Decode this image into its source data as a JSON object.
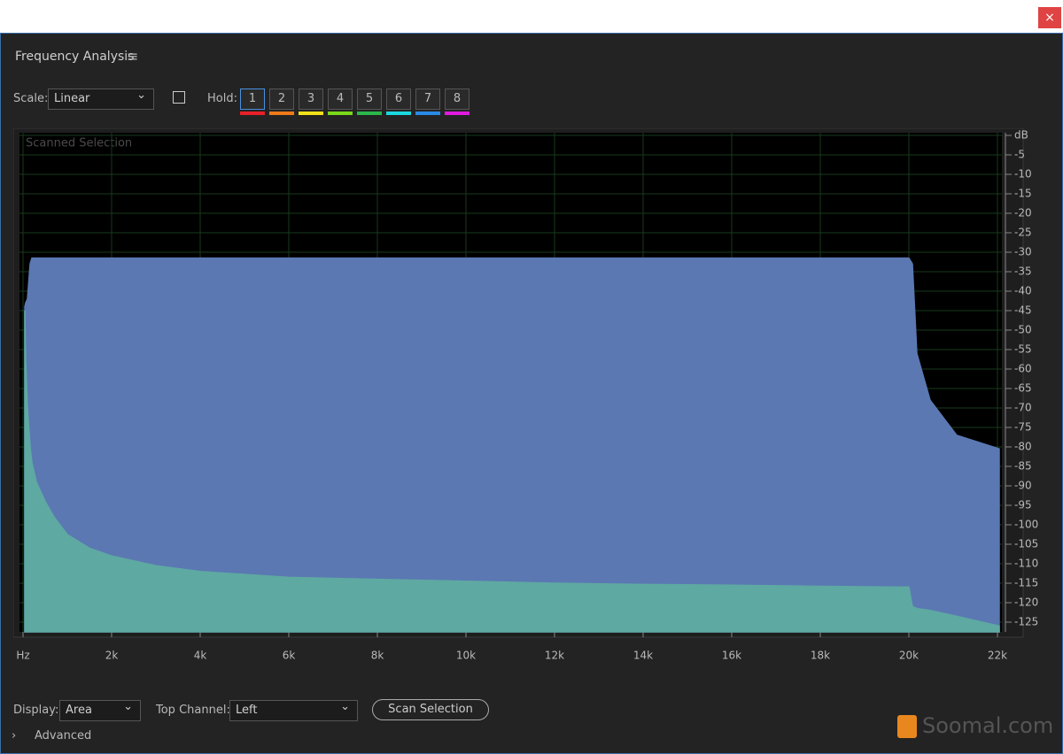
{
  "window": {
    "close": "×"
  },
  "panel": {
    "title": "Frequency Analysis",
    "menu_icon": "≡"
  },
  "toolbar": {
    "scale_label": "Scale:",
    "scale_value": "Linear",
    "hold_label": "Hold:",
    "hold_buttons": [
      {
        "label": "1",
        "color": "#e8202a"
      },
      {
        "label": "2",
        "color": "#f07a1a"
      },
      {
        "label": "3",
        "color": "#f2e01a"
      },
      {
        "label": "4",
        "color": "#7ad81a"
      },
      {
        "label": "5",
        "color": "#2ab84a"
      },
      {
        "label": "6",
        "color": "#1ad8e0"
      },
      {
        "label": "7",
        "color": "#2a8ae8"
      },
      {
        "label": "8",
        "color": "#e01ae0"
      }
    ]
  },
  "chart_data": {
    "type": "area",
    "annotation": "Scanned Selection",
    "x": [
      40,
      60,
      100,
      160,
      200,
      300,
      500,
      700,
      1000,
      1500,
      2000,
      3000,
      4000,
      6000,
      8000,
      10000,
      12000,
      14000,
      16000,
      18000,
      20000,
      20080,
      20180,
      20480,
      21080,
      22040
    ],
    "series": [
      {
        "color": "#5b78b2",
        "values": [
          -44,
          -43,
          -42,
          -33,
          -31.5,
          -31.5,
          -31.5,
          -31.5,
          -31.5,
          -31.5,
          -31.5,
          -31.5,
          -31.5,
          -31.5,
          -31.5,
          -31.5,
          -31.5,
          -31.5,
          -31.5,
          -31.5,
          -31.5,
          -33,
          -56,
          -68,
          -77,
          -80.5
        ]
      },
      {
        "color": "#5ea9a2",
        "values": [
          -45,
          -58,
          -70,
          -80,
          -84,
          -89,
          -94,
          -98,
          -102.5,
          -106,
          -108,
          -110.5,
          -112,
          -113.5,
          -114,
          -114.5,
          -115,
          -115.3,
          -115.5,
          -115.8,
          -116,
          -121,
          -121.5,
          -122,
          -123.5,
          -126
        ]
      }
    ],
    "xlim": [
      0,
      22050
    ],
    "xticks": [
      {
        "value": 0,
        "label": "Hz"
      },
      {
        "value": 2000,
        "label": "2k"
      },
      {
        "value": 4000,
        "label": "4k"
      },
      {
        "value": 6000,
        "label": "6k"
      },
      {
        "value": 8000,
        "label": "8k"
      },
      {
        "value": 10000,
        "label": "10k"
      },
      {
        "value": 12000,
        "label": "12k"
      },
      {
        "value": 14000,
        "label": "14k"
      },
      {
        "value": 16000,
        "label": "16k"
      },
      {
        "value": 18000,
        "label": "18k"
      },
      {
        "value": 20000,
        "label": "20k"
      },
      {
        "value": 22000,
        "label": "22k"
      }
    ],
    "ylim": [
      -127.5,
      0
    ],
    "yticks": [
      {
        "value": 0,
        "label": "dB"
      },
      -5,
      -10,
      -15,
      -20,
      -25,
      -30,
      -35,
      -40,
      -45,
      -50,
      -55,
      -60,
      -65,
      -70,
      -75,
      -80,
      -85,
      -90,
      -95,
      -100,
      -105,
      -110,
      -115,
      -120,
      -125
    ],
    "grid": true
  },
  "footer": {
    "display_label": "Display:",
    "display_value": "Area",
    "channel_label": "Top Channel:",
    "channel_value": "Left",
    "scan_button": "Scan Selection",
    "advanced": "Advanced",
    "watermark": "Soomal.com"
  }
}
